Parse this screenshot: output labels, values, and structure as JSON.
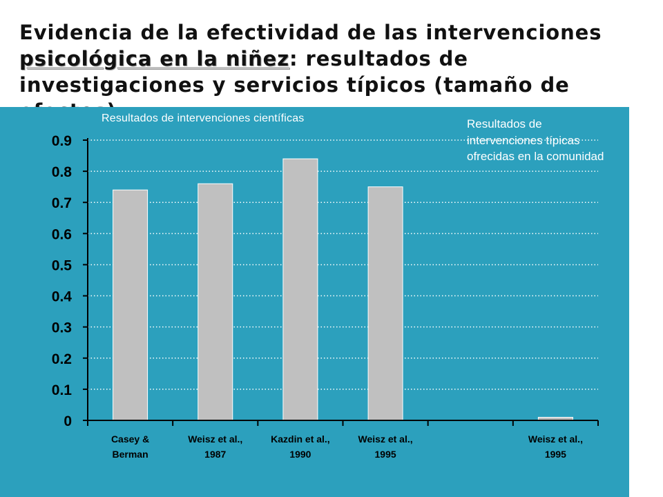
{
  "slide": {
    "title_part1": "Evidencia de la efectividad de las intervenciones ",
    "title_part2": "psicológica en la niñez",
    "title_part3": ": resultados de investigaciones y servicios típicos (tamaño de efectos)",
    "annotation_left": "Resultados de intervenciones científicas",
    "annotation_right": "Resultados de intervenciones típicas ofrecidas en la comunidad"
  },
  "colors": {
    "panel": "#2ca0bd",
    "bar_fill": "#c0c0c0",
    "axis_text": "#000000",
    "gridline": "#ffffff"
  },
  "chart_data": {
    "type": "bar",
    "categories": [
      [
        "Casey &",
        "Berman"
      ],
      [
        "Weisz et al.,",
        "1987"
      ],
      [
        "Kazdin et al.,",
        "1990"
      ],
      [
        "Weisz et al.,",
        "1995"
      ],
      [
        "",
        ""
      ],
      [
        "Weisz et al.,",
        "1995"
      ]
    ],
    "values": [
      0.74,
      0.76,
      0.84,
      0.75,
      null,
      0.01
    ],
    "y_ticks": [
      "0",
      "0.1",
      "0.2",
      "0.3",
      "0.4",
      "0.5",
      "0.6",
      "0.7",
      "0.8",
      "0.9"
    ],
    "ylim": [
      0,
      0.9
    ],
    "grid": true,
    "title": "",
    "xlabel": "",
    "ylabel": ""
  }
}
